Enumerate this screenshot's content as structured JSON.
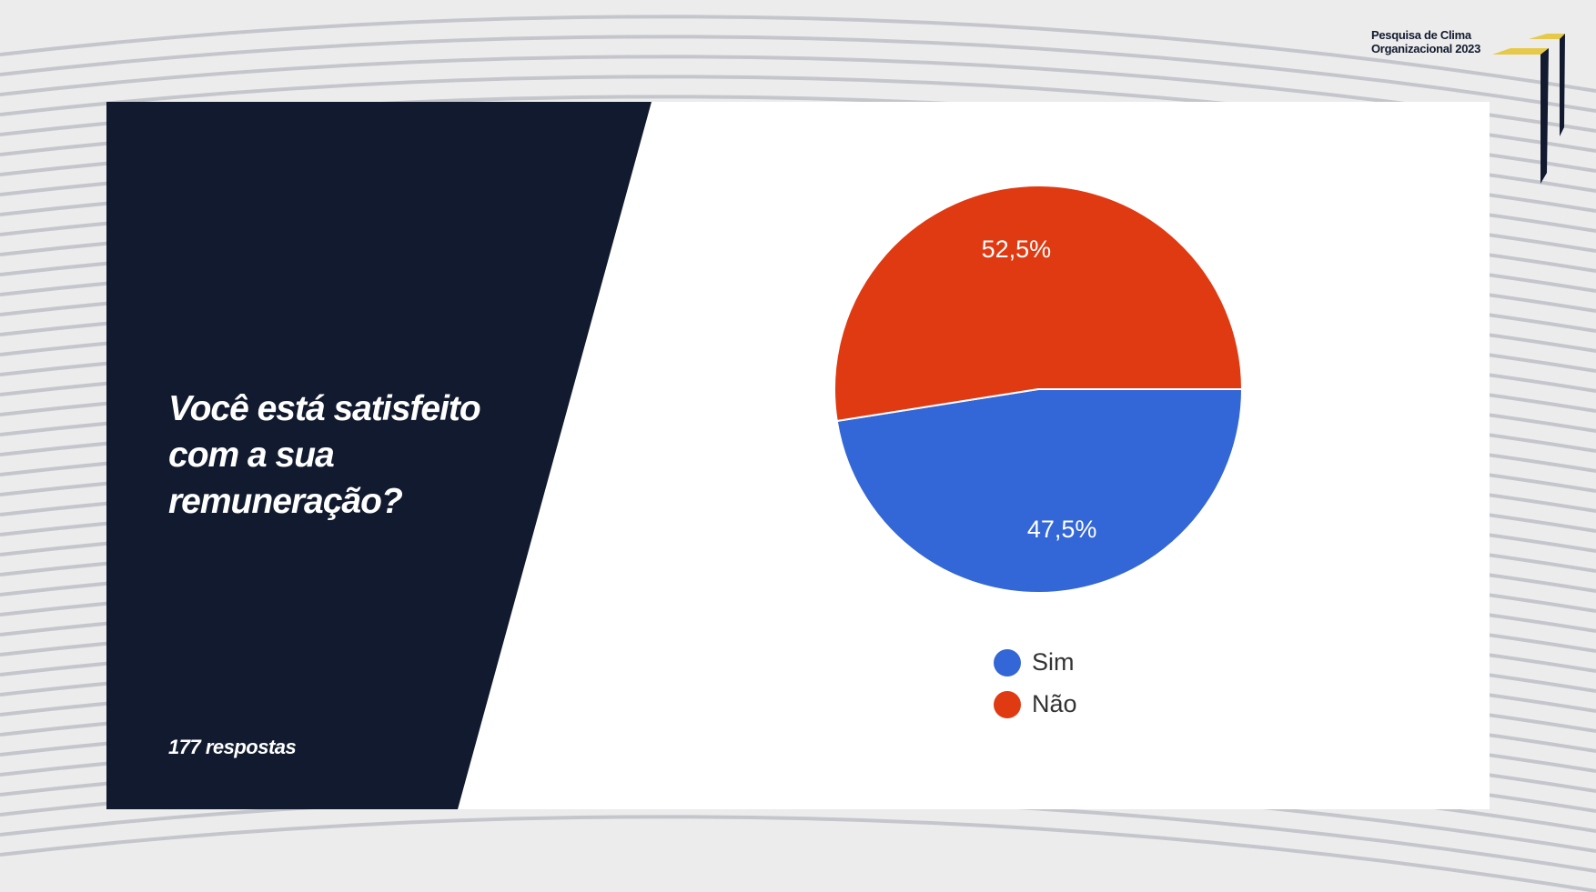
{
  "header": {
    "logo_line1": "Pesquisa de Clima",
    "logo_line2": "Organizacional 2023"
  },
  "question": {
    "title": "Você está satisfeito com a sua remuneração?",
    "responses": "177 respostas"
  },
  "colors": {
    "dark_panel": "#111a2e",
    "sim": "#3366d6",
    "nao": "#e03a12",
    "accent_yellow": "#e7c94a"
  },
  "chart_data": {
    "type": "pie",
    "categories": [
      "Sim",
      "Não"
    ],
    "values": [
      47.5,
      52.5
    ],
    "labels": [
      "47,5%",
      "52,5%"
    ],
    "colors": [
      "#3366d6",
      "#e03a12"
    ],
    "legend": "bottom"
  }
}
